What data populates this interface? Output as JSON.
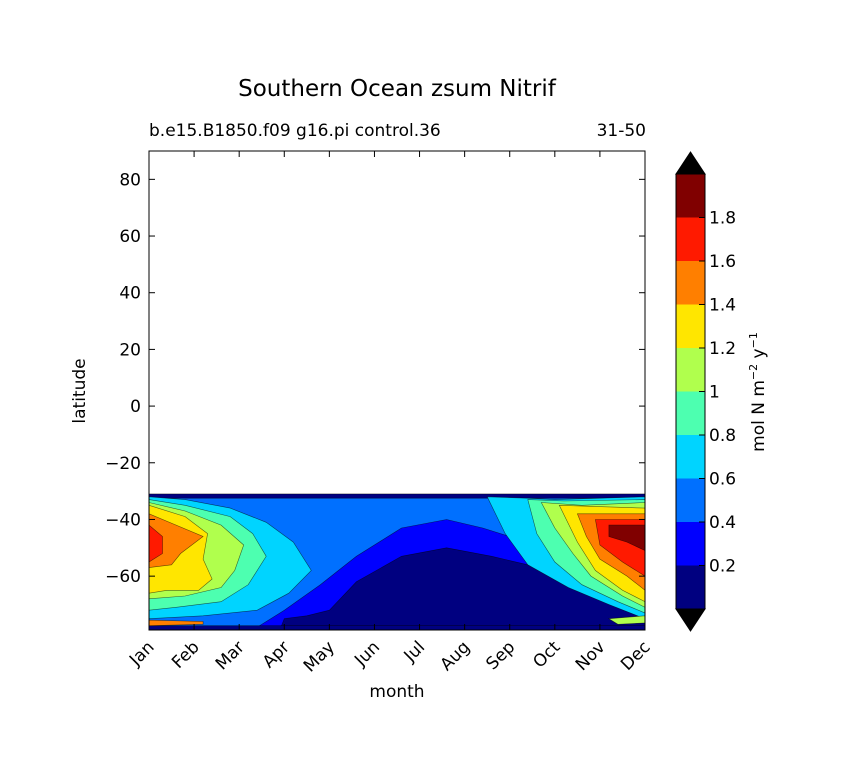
{
  "chart_data": {
    "type": "contour",
    "title": "Southern Ocean zsum Nitrif",
    "subtitle_left": "b.e15.B1850.f09 g16.pi control.36",
    "subtitle_right": "31-50",
    "xlabel": "month",
    "ylabel": "latitude",
    "categories": [
      "Jan",
      "Feb",
      "Mar",
      "Apr",
      "May",
      "Jun",
      "Jul",
      "Aug",
      "Sep",
      "Oct",
      "Nov",
      "Dec"
    ],
    "yticks": [
      80,
      60,
      40,
      20,
      0,
      -20,
      -40,
      -60
    ],
    "ylim": [
      -79,
      90
    ],
    "colorbar": {
      "label": "mol N m",
      "label_exp1": "−2",
      "label_mid": " y",
      "label_exp2": "−1",
      "levels": [
        0.2,
        0.4,
        0.6,
        0.8,
        1,
        1.2,
        1.4,
        1.6,
        1.8
      ],
      "colors": [
        "#000080",
        "#0000ff",
        "#0070ff",
        "#00d4ff",
        "#4dffb0",
        "#b0ff4d",
        "#ffe600",
        "#ff7f00",
        "#ff1a00",
        "#800000"
      ],
      "extend_low_color": "#000000",
      "extend_high_color": "#000000"
    },
    "data_extent_lat": [
      -79,
      -31
    ],
    "regions": [
      {
        "name": "deep-blue-base",
        "level": "0-0.2",
        "lat_range": [
          -79,
          -50
        ],
        "months": "Apr-Dec"
      },
      {
        "name": "blue",
        "level": "0.2-0.4",
        "lat_range": [
          -75,
          -40
        ],
        "months": "Mar-Nov"
      },
      {
        "name": "mid-blue",
        "level": "0.4-0.6",
        "lat_range": [
          -78,
          -32
        ],
        "months": "Jan-Dec"
      },
      {
        "name": "cyan",
        "level": "0.6-0.8",
        "lat_range": [
          -72,
          -33
        ],
        "months": "Jan-Apr, Sep-Dec"
      },
      {
        "name": "green",
        "level": "0.8-1.2",
        "lat_range": [
          -70,
          -35
        ],
        "months": "Jan-Mar, Oct-Dec"
      },
      {
        "name": "yellow",
        "level": "1.2-1.4",
        "lat_range": [
          -67,
          -37
        ],
        "months": "Jan-Feb, Nov-Dec"
      },
      {
        "name": "orange",
        "level": "1.4-1.6",
        "lat_range": [
          -58,
          -42
        ],
        "months": "Jan, Nov-Dec"
      },
      {
        "name": "red",
        "level": "1.6-1.8",
        "lat_range": [
          -54,
          -40
        ],
        "months": "Jan, Nov-Dec"
      },
      {
        "name": "dark-red",
        "level": ">1.8",
        "lat_range": [
          -50,
          -42
        ],
        "months": "Nov-Dec"
      }
    ]
  }
}
